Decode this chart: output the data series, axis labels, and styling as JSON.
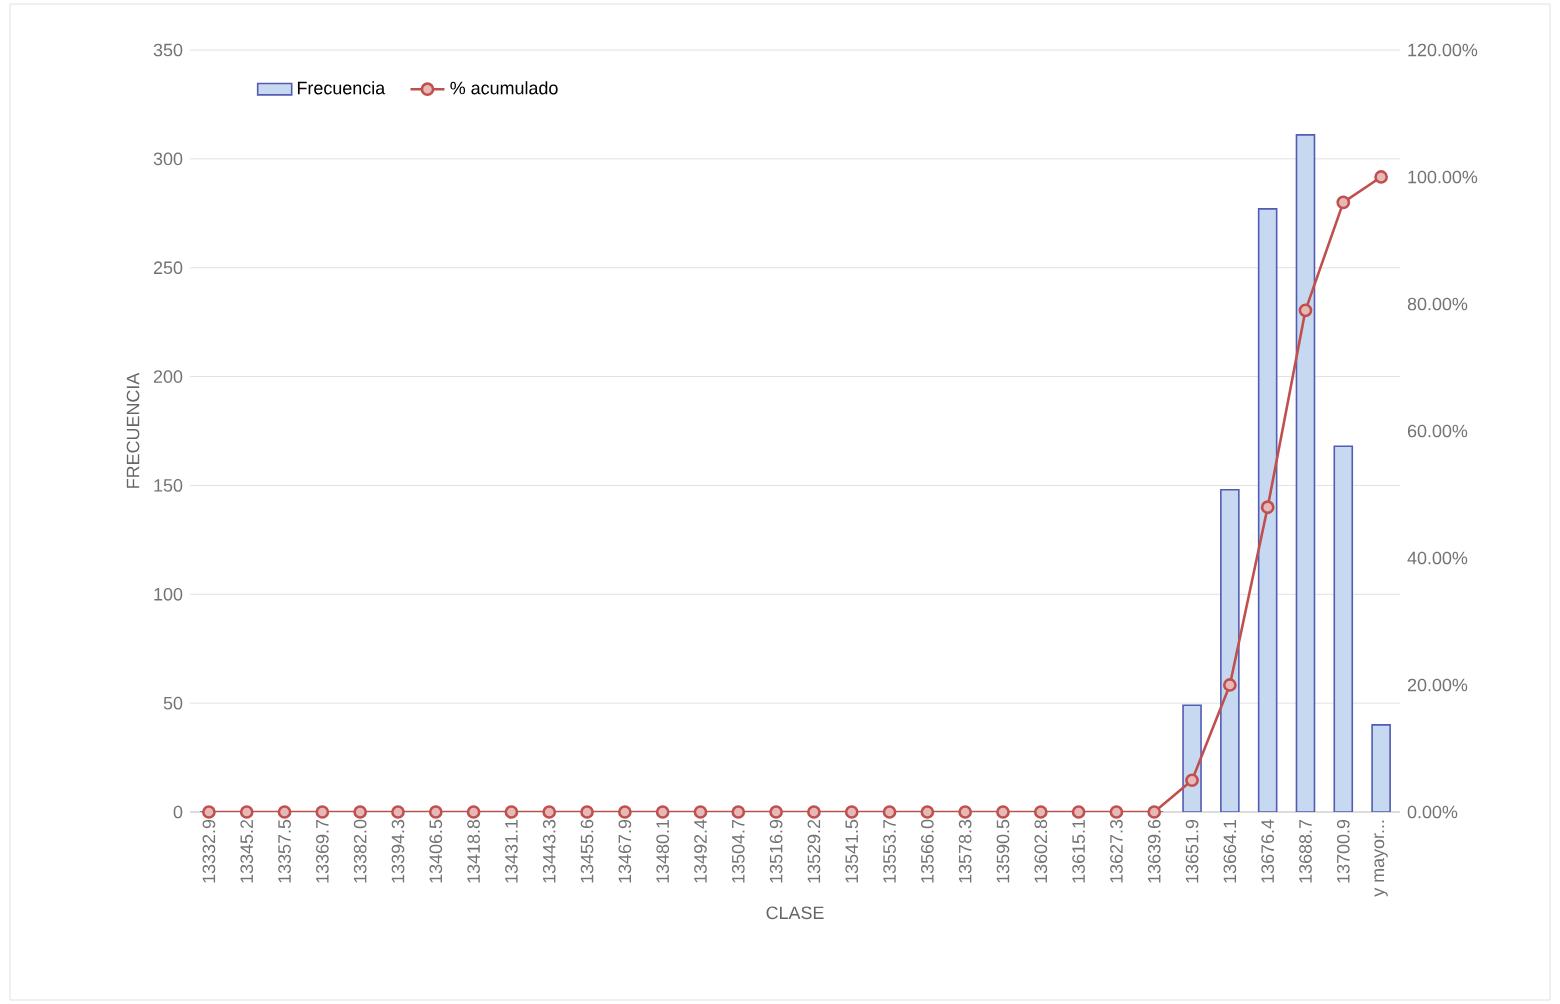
{
  "chart_data": {
    "type": "bar",
    "xlabel": "CLASE",
    "ylabel": "FRECUENCIA",
    "categories": [
      "13332.9",
      "13345.2",
      "13357.5",
      "13369.7",
      "13382.0",
      "13394.3",
      "13406.5",
      "13418.8",
      "13431.1",
      "13443.3",
      "13455.6",
      "13467.9",
      "13480.1",
      "13492.4",
      "13504.7",
      "13516.9",
      "13529.2",
      "13541.5",
      "13553.7",
      "13566.0",
      "13578.3",
      "13590.5",
      "13602.8",
      "13615.1",
      "13627.3",
      "13639.6",
      "13651.9",
      "13664.1",
      "13676.4",
      "13688.7",
      "13700.9",
      "y mayor..."
    ],
    "series": [
      {
        "name": "Frecuencia",
        "color": "#c6d9f1",
        "values": [
          0,
          0,
          0,
          0,
          0,
          0,
          0,
          0,
          0,
          0,
          0,
          0,
          0,
          0,
          0,
          0,
          0,
          0,
          0,
          0,
          0,
          0,
          0,
          0,
          0,
          0,
          49,
          148,
          277,
          311,
          168,
          40
        ]
      },
      {
        "name": "% acumulado",
        "type": "line",
        "axis": "y2",
        "marker": "circle",
        "color": "#c0504d",
        "values": [
          0,
          0,
          0,
          0,
          0,
          0,
          0,
          0,
          0,
          0,
          0,
          0,
          0,
          0,
          0,
          0,
          0,
          0,
          0,
          0,
          0,
          0,
          0,
          0,
          0,
          0,
          5,
          20,
          48,
          79,
          96,
          100
        ]
      }
    ],
    "ylim": [
      0,
      350
    ],
    "yticks": [
      0,
      50,
      100,
      150,
      200,
      250,
      300,
      350
    ],
    "y2lim": [
      0,
      120
    ],
    "y2ticks": [
      {
        "value": 0,
        "label": "0.00%"
      },
      {
        "value": 20,
        "label": "20.00%"
      },
      {
        "value": 40,
        "label": "40.00%"
      },
      {
        "value": 60,
        "label": "60.00%"
      },
      {
        "value": 80,
        "label": "80.00%"
      },
      {
        "value": 100,
        "label": "100.00%"
      },
      {
        "value": 120,
        "label": "120.00%"
      }
    ],
    "grid": "y",
    "legend": "top left"
  }
}
